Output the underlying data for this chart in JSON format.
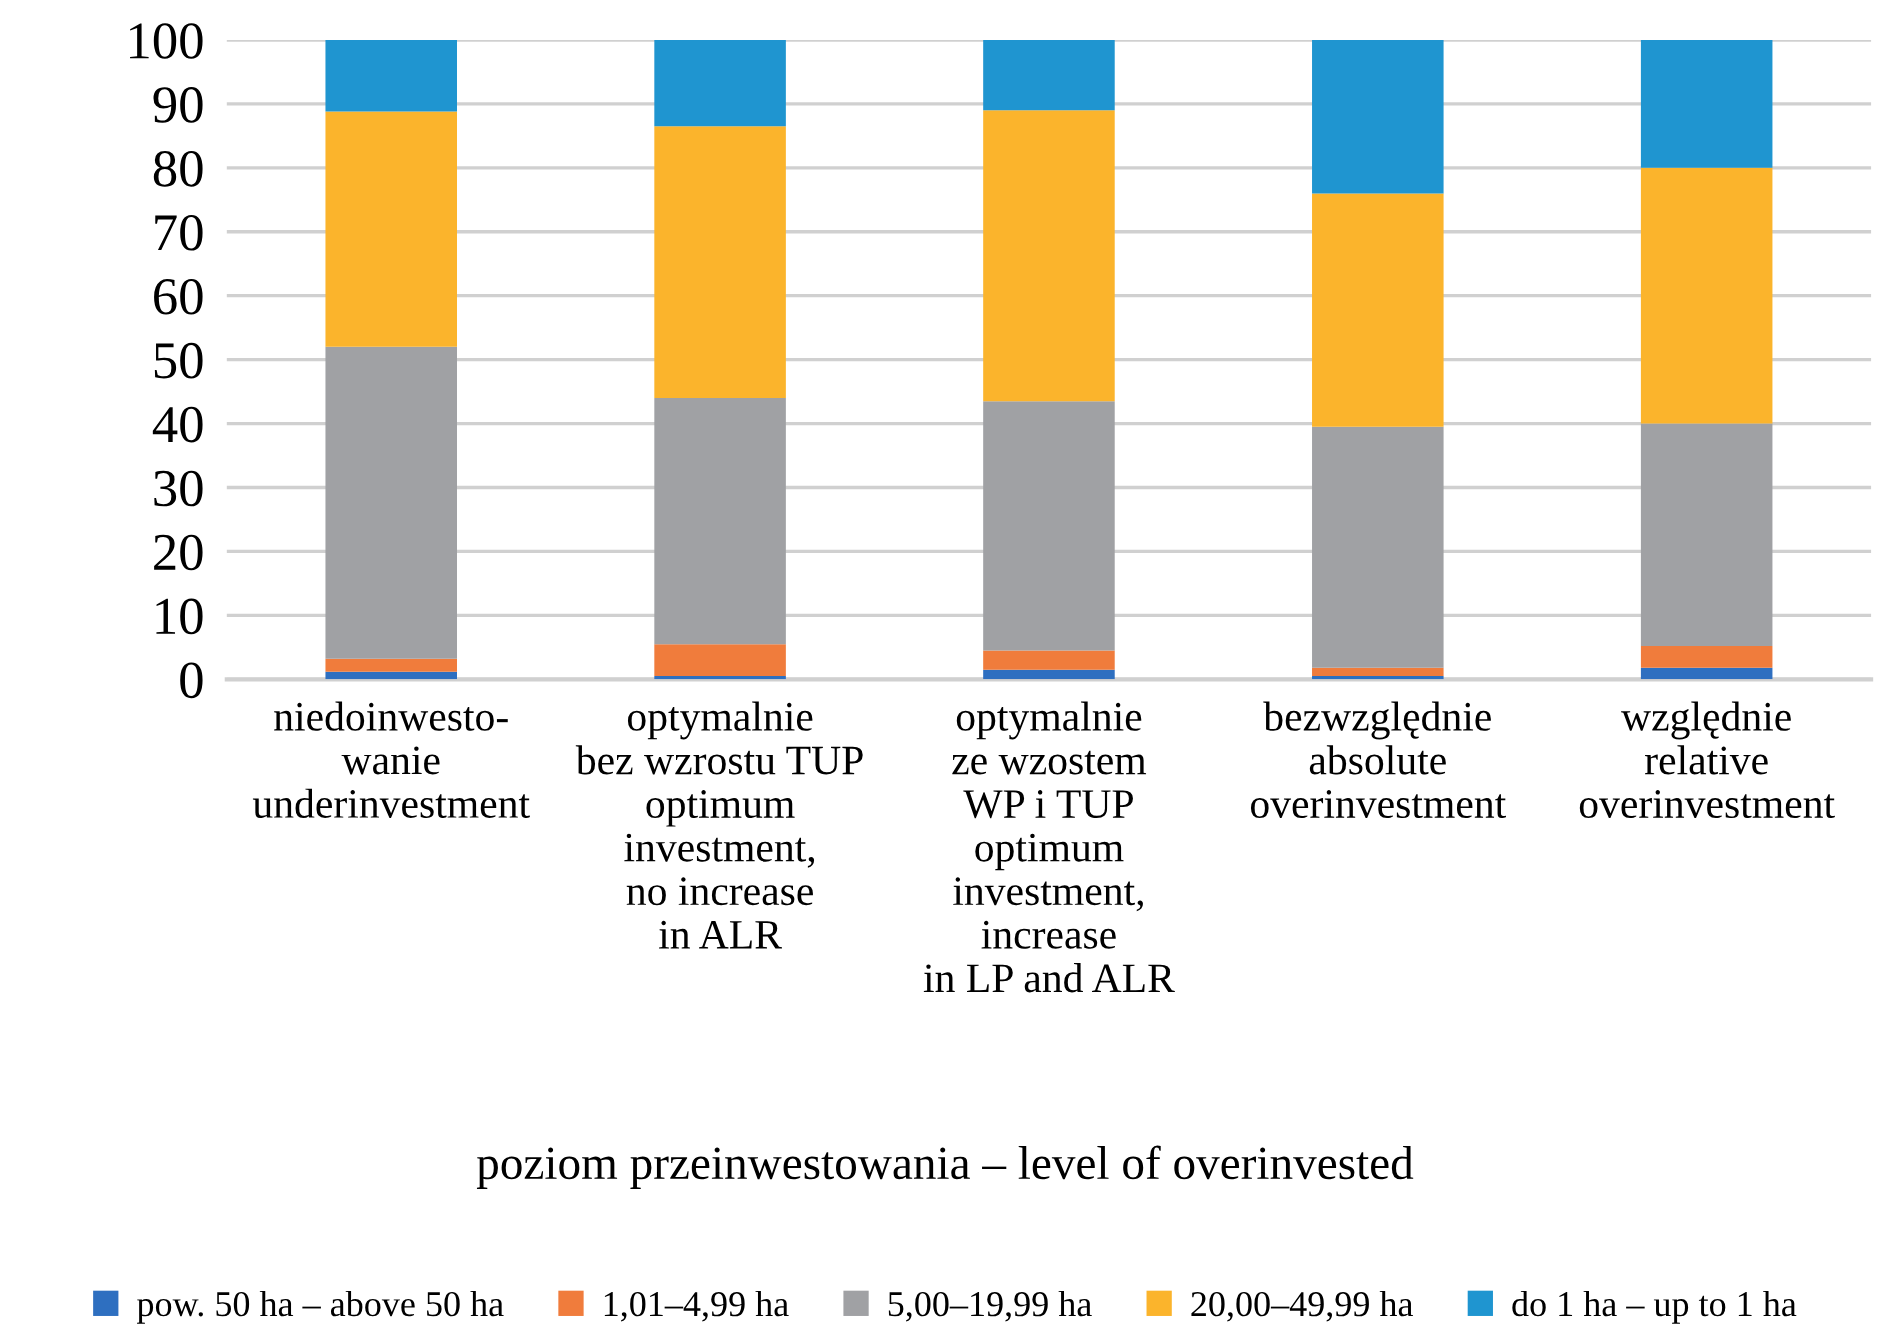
{
  "chart_data": {
    "type": "bar",
    "stacked": true,
    "xlabel": "poziom przeinwestowania – level of overinvested",
    "categories": [
      "niedoinwesto-\nwanie\nunderinvestment",
      "optymalnie\nbez wzrostu TUP\noptimum\ninvestment,\nno increase\nin ALR",
      "optymalnie\nze wzostem\nWP i TUP\noptimum\ninvestment,\nincrease\nin LP and ALR",
      "bezwzględnie\nabsolute\noverinvestment",
      "względnie\nrelative\noverinvestment"
    ],
    "series": [
      {
        "name": "pow. 50 ha – above 50 ha",
        "color": "#2e6fc0",
        "values": [
          1.2,
          0.5,
          1.5,
          0.5,
          1.8
        ]
      },
      {
        "name": "1,01–4,99 ha",
        "color": "#f07c3c",
        "values": [
          2.0,
          5.0,
          3.0,
          1.3,
          3.4
        ]
      },
      {
        "name": "5,00–19,99 ha",
        "color": "#a0a1a4",
        "values": [
          48.8,
          38.5,
          39.0,
          37.7,
          34.8
        ]
      },
      {
        "name": "20,00–49,99 ha",
        "color": "#fbb42c",
        "values": [
          36.8,
          42.5,
          45.5,
          36.5,
          40.0
        ]
      },
      {
        "name": "do 1 ha – up to 1 ha",
        "color": "#1f95d0",
        "values": [
          11.2,
          13.5,
          11.0,
          24.0,
          20.0
        ]
      }
    ],
    "ylim": [
      0,
      100
    ],
    "yticks": [
      0,
      10,
      20,
      30,
      40,
      50,
      60,
      70,
      80,
      90,
      100
    ],
    "grid": "y",
    "legend": "bottom"
  }
}
